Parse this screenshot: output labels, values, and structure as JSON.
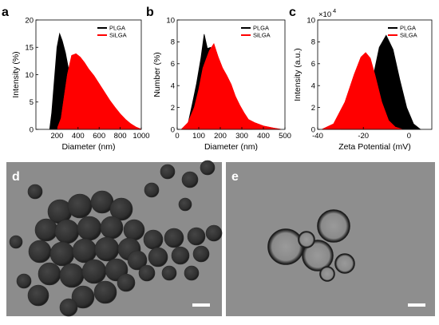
{
  "panels": {
    "a": "a",
    "b": "b",
    "c": "c",
    "d": "d",
    "e": "e"
  },
  "colors": {
    "plga": "#000000",
    "silga": "#ff0000",
    "tem_bg": "#8c8c8c",
    "tem_particle": "#3a3a3a"
  },
  "chart_data": [
    {
      "panel": "a",
      "type": "area",
      "xlabel": "Diameter (nm)",
      "ylabel": "Intensity (%)",
      "xlim": [
        0,
        1000
      ],
      "ylim": [
        0,
        20
      ],
      "xticks": [
        200,
        400,
        600,
        800,
        1000
      ],
      "yticks": [
        0,
        5,
        10,
        15,
        20
      ],
      "legend_position": "top-right",
      "series": [
        {
          "name": "PLGA",
          "x": [
            130,
            150,
            175,
            200,
            225,
            250,
            280,
            310,
            350,
            400,
            450,
            500,
            550,
            600
          ],
          "y": [
            0,
            3,
            9,
            15,
            17.5,
            16.2,
            14,
            11,
            7,
            4,
            2,
            0.8,
            0.3,
            0
          ]
        },
        {
          "name": "SiLGA",
          "x": [
            200,
            240,
            270,
            300,
            340,
            380,
            420,
            460,
            500,
            550,
            600,
            650,
            700,
            750,
            800,
            850,
            900,
            950,
            1000
          ],
          "y": [
            0,
            2,
            6,
            10,
            13.5,
            13.8,
            13.2,
            12.2,
            11,
            9.8,
            8.3,
            6.8,
            5.3,
            4,
            2.8,
            1.8,
            1,
            0.4,
            0
          ]
        }
      ]
    },
    {
      "panel": "b",
      "type": "area",
      "xlabel": "Diameter (nm)",
      "ylabel": "Number (%)",
      "xlim": [
        0,
        500
      ],
      "ylim": [
        0,
        10
      ],
      "xticks": [
        0,
        100,
        200,
        300,
        400,
        500
      ],
      "yticks": [
        0,
        2,
        4,
        6,
        8,
        10
      ],
      "legend_position": "top-right",
      "series": [
        {
          "name": "PLGA",
          "x": [
            30,
            50,
            70,
            90,
            110,
            125,
            140,
            155,
            170,
            185,
            200,
            215,
            230,
            250,
            270,
            290,
            310,
            330,
            350
          ],
          "y": [
            0,
            0.5,
            2.3,
            4.2,
            6.5,
            8.7,
            7.4,
            7.5,
            6.9,
            6.1,
            4.7,
            3.6,
            2.6,
            1.7,
            1.0,
            0.6,
            0.4,
            0.2,
            0
          ]
        },
        {
          "name": "SiLGA",
          "x": [
            20,
            50,
            80,
            100,
            120,
            135,
            150,
            170,
            190,
            210,
            230,
            250,
            270,
            290,
            310,
            330,
            360,
            400,
            450,
            480
          ],
          "y": [
            0,
            0.6,
            2.0,
            3.6,
            5.6,
            6.4,
            7.2,
            7.8,
            6.6,
            5.6,
            4.9,
            4.1,
            3.0,
            2.2,
            1.5,
            0.9,
            0.6,
            0.3,
            0.1,
            0
          ]
        }
      ]
    },
    {
      "panel": "c",
      "type": "area",
      "xlabel": "Zeta Potential (mV)",
      "ylabel": "Intensity (a.u.)",
      "axis_multiplier": "×10",
      "axis_multiplier_exp": "4",
      "xlim": [
        -40,
        10
      ],
      "ylim": [
        0,
        10
      ],
      "xticks": [
        -40,
        -20,
        0
      ],
      "yticks": [
        0,
        2,
        4,
        6,
        8,
        10
      ],
      "legend_position": "top-right",
      "series": [
        {
          "name": "PLGA",
          "x": [
            -30,
            -25,
            -20,
            -16,
            -13,
            -10,
            -7,
            -4,
            -1,
            2,
            5
          ],
          "y": [
            0,
            0.3,
            1.5,
            4.5,
            7.5,
            8.6,
            7.3,
            4.5,
            2.0,
            0.5,
            0
          ]
        },
        {
          "name": "SiLGA",
          "x": [
            -38,
            -33,
            -28,
            -24,
            -21,
            -19,
            -17,
            -15,
            -12,
            -9,
            -6,
            -3
          ],
          "y": [
            0,
            0.5,
            2.5,
            5.0,
            6.6,
            7.0,
            6.5,
            5.0,
            2.5,
            0.8,
            0.2,
            0
          ]
        }
      ]
    }
  ]
}
